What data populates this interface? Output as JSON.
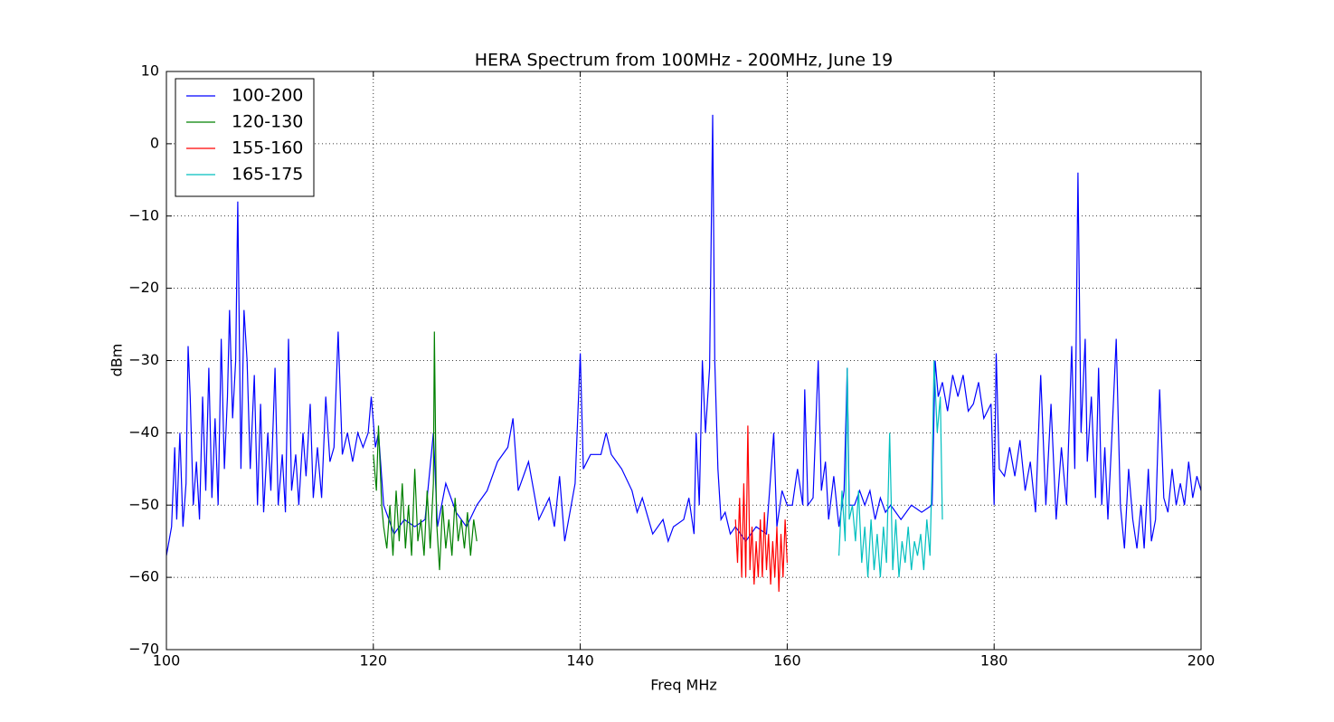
{
  "chart_data": {
    "type": "line",
    "title": "HERA Spectrum from 100MHz - 200MHz, June 19",
    "xlabel": "Freq MHz",
    "ylabel": "dBm",
    "xlim": [
      100,
      200
    ],
    "xticks": [
      100,
      120,
      140,
      160,
      180,
      200
    ],
    "ylim": [
      -70,
      10
    ],
    "yticks": [
      {
        "value": -70,
        "label": "−70"
      },
      {
        "value": -60,
        "label": "−60"
      },
      {
        "value": -50,
        "label": "−50"
      },
      {
        "value": -40,
        "label": "−40"
      },
      {
        "value": -30,
        "label": "−30"
      },
      {
        "value": -20,
        "label": "−20"
      },
      {
        "value": -10,
        "label": "−10"
      },
      0,
      10
    ],
    "grid": true,
    "legend": "upper left",
    "series": [
      {
        "name": "100-200",
        "color": "#0000ff",
        "x": [
          100,
          100.5,
          100.8,
          101,
          101.3,
          101.6,
          101.9,
          102.1,
          102.3,
          102.6,
          102.9,
          103.2,
          103.5,
          103.8,
          104.1,
          104.4,
          104.7,
          105,
          105.3,
          105.6,
          105.9,
          106.1,
          106.4,
          106.7,
          106.9,
          107.2,
          107.5,
          107.8,
          108.1,
          108.5,
          108.8,
          109.1,
          109.4,
          109.8,
          110.1,
          110.5,
          110.8,
          111.2,
          111.5,
          111.8,
          112.1,
          112.5,
          112.8,
          113.2,
          113.5,
          113.9,
          114.2,
          114.6,
          115,
          115.4,
          115.8,
          116.2,
          116.6,
          117,
          117.5,
          118,
          118.5,
          119,
          119.5,
          119.8,
          120.2,
          120.5,
          121,
          121.5,
          122,
          123,
          124,
          125,
          125.8,
          126.2,
          127,
          128,
          129,
          130,
          131,
          132,
          133,
          133.5,
          134,
          135,
          136,
          137,
          137.5,
          138,
          138.5,
          139,
          139.5,
          140,
          140.3,
          141,
          142,
          142.5,
          143,
          144,
          145,
          145.5,
          146,
          147,
          148,
          148.5,
          149,
          150,
          150.5,
          151,
          151.2,
          151.5,
          151.8,
          152.1,
          152.5,
          152.8,
          153,
          153.3,
          153.6,
          154,
          154.5,
          155,
          156,
          157,
          158,
          158.7,
          159,
          159.5,
          160,
          160.5,
          161,
          161.5,
          161.7,
          162,
          162.5,
          163,
          163.3,
          163.7,
          164,
          164.5,
          165,
          165.5,
          165.8,
          166,
          166.5,
          167,
          167.5,
          168,
          168.5,
          169,
          169.5,
          170,
          171,
          172,
          173,
          174,
          174.3,
          174.6,
          175,
          175.5,
          176,
          176.5,
          177,
          177.5,
          178,
          178.5,
          179,
          179.7,
          180,
          180.2,
          180.5,
          181,
          181.5,
          182,
          182.5,
          183,
          183.5,
          184,
          184.5,
          185,
          185.5,
          186,
          186.5,
          187,
          187.5,
          187.8,
          188.1,
          188.4,
          188.8,
          189,
          189.4,
          189.8,
          190.1,
          190.4,
          190.7,
          191,
          191.4,
          191.8,
          192.2,
          192.6,
          193,
          193.4,
          193.8,
          194.2,
          194.5,
          194.9,
          195.2,
          195.6,
          196,
          196.4,
          196.8,
          197.2,
          197.6,
          198,
          198.4,
          198.8,
          199.2,
          199.6,
          200
        ],
        "values": [
          -57,
          -53,
          -42,
          -52,
          -40,
          -53,
          -47,
          -28,
          -35,
          -50,
          -44,
          -52,
          -35,
          -48,
          -31,
          -49,
          -38,
          -50,
          -27,
          -45,
          -35,
          -23,
          -38,
          -30,
          -8,
          -45,
          -23,
          -30,
          -45,
          -32,
          -50,
          -36,
          -51,
          -40,
          -48,
          -31,
          -50,
          -43,
          -51,
          -27,
          -48,
          -43,
          -50,
          -40,
          -46,
          -36,
          -49,
          -42,
          -49,
          -35,
          -44,
          -42,
          -26,
          -43,
          -40,
          -44,
          -40,
          -42,
          -40,
          -35,
          -42,
          -40,
          -50,
          -52,
          -54,
          -52,
          -53,
          -52,
          -40,
          -53,
          -47,
          -51,
          -53,
          -50,
          -48,
          -44,
          -42,
          -38,
          -48,
          -44,
          -52,
          -49,
          -53,
          -46,
          -55,
          -51,
          -47,
          -29,
          -45,
          -43,
          -43,
          -40,
          -43,
          -45,
          -48,
          -51,
          -49,
          -54,
          -52,
          -55,
          -53,
          -52,
          -49,
          -54,
          -40,
          -50,
          -30,
          -40,
          -31,
          4,
          -30,
          -45,
          -52,
          -51,
          -54,
          -53,
          -55,
          -53,
          -54,
          -40,
          -53,
          -48,
          -50,
          -50,
          -45,
          -50,
          -34,
          -50,
          -49,
          -30,
          -48,
          -44,
          -52,
          -46,
          -53,
          -48,
          -31,
          -50,
          -50,
          -48,
          -50,
          -48,
          -52,
          -49,
          -51,
          -50,
          -52,
          -50,
          -51,
          -50,
          -30,
          -35,
          -33,
          -37,
          -32,
          -35,
          -32,
          -37,
          -36,
          -33,
          -38,
          -36,
          -50,
          -29,
          -45,
          -46,
          -42,
          -46,
          -41,
          -48,
          -44,
          -51,
          -32,
          -50,
          -36,
          -52,
          -42,
          -50,
          -28,
          -45,
          -4,
          -40,
          -27,
          -44,
          -35,
          -49,
          -31,
          -50,
          -42,
          -52,
          -40,
          -27,
          -50,
          -56,
          -45,
          -52,
          -56,
          -50,
          -56,
          -45,
          -55,
          -52,
          -34,
          -49,
          -51,
          -45,
          -50,
          -47,
          -50,
          -44,
          -49,
          -46,
          -48
        ]
      },
      {
        "name": "120-130",
        "color": "#008000",
        "x": [
          120,
          120.3,
          120.5,
          120.8,
          121,
          121.3,
          121.6,
          121.9,
          122.2,
          122.5,
          122.8,
          123.1,
          123.4,
          123.7,
          124,
          124.3,
          124.6,
          124.9,
          125.2,
          125.5,
          125.8,
          125.9,
          126.1,
          126.4,
          126.7,
          127,
          127.3,
          127.6,
          127.9,
          128.2,
          128.5,
          128.8,
          129.1,
          129.4,
          129.7,
          130
        ],
        "values": [
          -43,
          -48,
          -39,
          -50,
          -53,
          -56,
          -50,
          -57,
          -48,
          -55,
          -47,
          -56,
          -50,
          -57,
          -45,
          -55,
          -52,
          -57,
          -48,
          -56,
          -47,
          -26,
          -52,
          -59,
          -50,
          -56,
          -52,
          -57,
          -49,
          -55,
          -52,
          -56,
          -51,
          -57,
          -52,
          -55
        ]
      },
      {
        "name": "155-160",
        "color": "#ff0000",
        "x": [
          155,
          155.2,
          155.4,
          155.6,
          155.8,
          156,
          156.2,
          156.4,
          156.6,
          156.8,
          157,
          157.2,
          157.4,
          157.6,
          157.8,
          158,
          158.2,
          158.4,
          158.6,
          158.8,
          159,
          159.2,
          159.4,
          159.6,
          159.8,
          160
        ],
        "values": [
          -52,
          -58,
          -49,
          -60,
          -47,
          -60,
          -39,
          -59,
          -53,
          -61,
          -55,
          -60,
          -52,
          -60,
          -51,
          -59,
          -54,
          -61,
          -55,
          -60,
          -53,
          -62,
          -54,
          -60,
          -52,
          -58
        ]
      },
      {
        "name": "165-175",
        "color": "#00bfbf",
        "x": [
          165,
          165.3,
          165.6,
          165.8,
          166,
          166.3,
          166.6,
          166.9,
          167.2,
          167.5,
          167.8,
          168.1,
          168.4,
          168.7,
          169,
          169.3,
          169.6,
          169.9,
          170.2,
          170.5,
          170.8,
          171.1,
          171.4,
          171.7,
          172,
          172.3,
          172.6,
          172.9,
          173.2,
          173.5,
          173.8,
          174,
          174.2,
          174.5,
          174.8,
          175
        ],
        "values": [
          -57,
          -48,
          -55,
          -31,
          -52,
          -50,
          -55,
          -48,
          -58,
          -53,
          -60,
          -52,
          -59,
          -54,
          -60,
          -53,
          -58,
          -40,
          -59,
          -52,
          -60,
          -55,
          -58,
          -53,
          -59,
          -55,
          -57,
          -54,
          -59,
          -52,
          -57,
          -45,
          -30,
          -40,
          -35,
          -52
        ]
      }
    ]
  }
}
